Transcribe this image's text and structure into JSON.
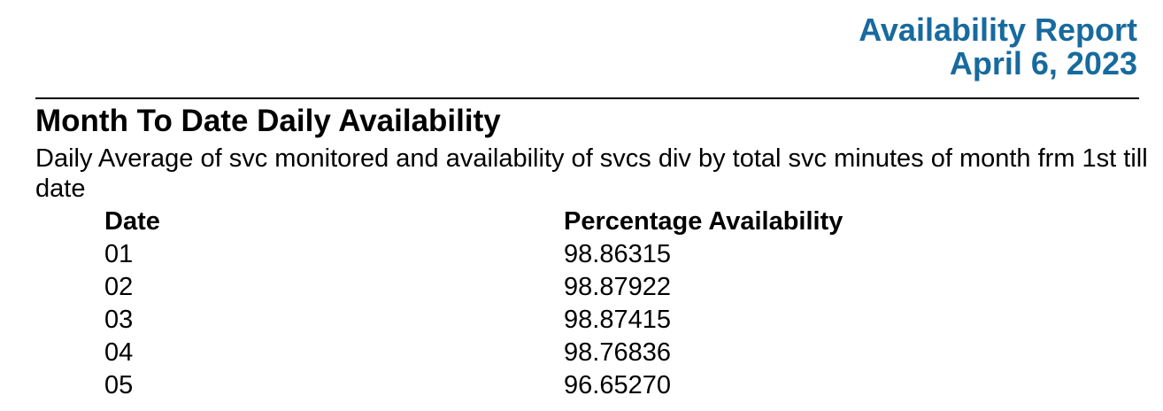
{
  "report": {
    "title": "Availability Report",
    "date": "April 6, 2023"
  },
  "section": {
    "title": "Month To Date Daily Availability",
    "subtitle": "Daily Average of svc monitored and availability of svcs div by total svc minutes of month frm 1st till date"
  },
  "table": {
    "headers": [
      "Date",
      "Percentage Availability"
    ],
    "rows": [
      [
        "01",
        "98.86315"
      ],
      [
        "02",
        "98.87922"
      ],
      [
        "03",
        "98.87415"
      ],
      [
        "04",
        "98.76836"
      ],
      [
        "05",
        "96.65270"
      ]
    ]
  },
  "colors": {
    "accent": "#176a9e",
    "text": "#000000",
    "rule": "#000000"
  }
}
